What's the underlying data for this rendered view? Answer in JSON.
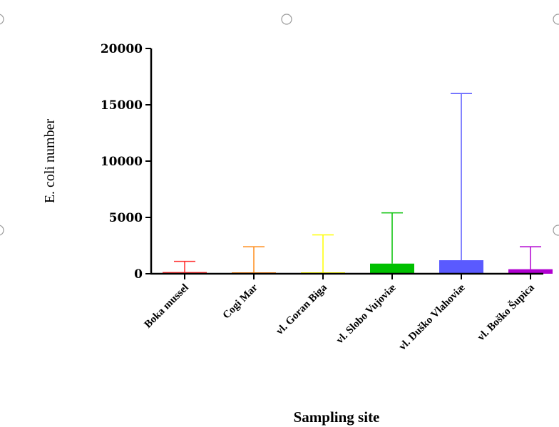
{
  "chart_data": {
    "type": "bar",
    "title": "",
    "xlabel": "Sampling site",
    "ylabel": "E. coli number",
    "ylim": [
      0,
      20000
    ],
    "yticks": [
      0,
      5000,
      10000,
      15000,
      20000
    ],
    "categories": [
      "Boka mussel",
      "Cogi Mar",
      "vl. Goran Biga",
      "vl. Slobo Vujoviæ",
      "vl. Duško Vlahoviæ",
      "vl. Boško Šupica"
    ],
    "values": [
      150,
      50,
      120,
      900,
      1200,
      400
    ],
    "error_upper": [
      1100,
      2400,
      3450,
      5400,
      16000,
      2400
    ],
    "colors": [
      "#ff2a2a",
      "#ff8c1a",
      "#ffff00",
      "#00c000",
      "#5a5aff",
      "#b000d0"
    ],
    "grid": false,
    "legend": "none"
  },
  "ui": {
    "selection_handles": "circle-handle"
  }
}
